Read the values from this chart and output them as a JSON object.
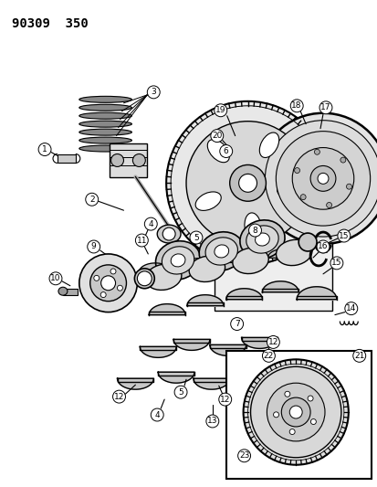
{
  "title": "90309  350",
  "bg_color": "#ffffff",
  "fg_color": "#000000",
  "fig_width": 4.14,
  "fig_height": 5.33,
  "dpi": 100
}
